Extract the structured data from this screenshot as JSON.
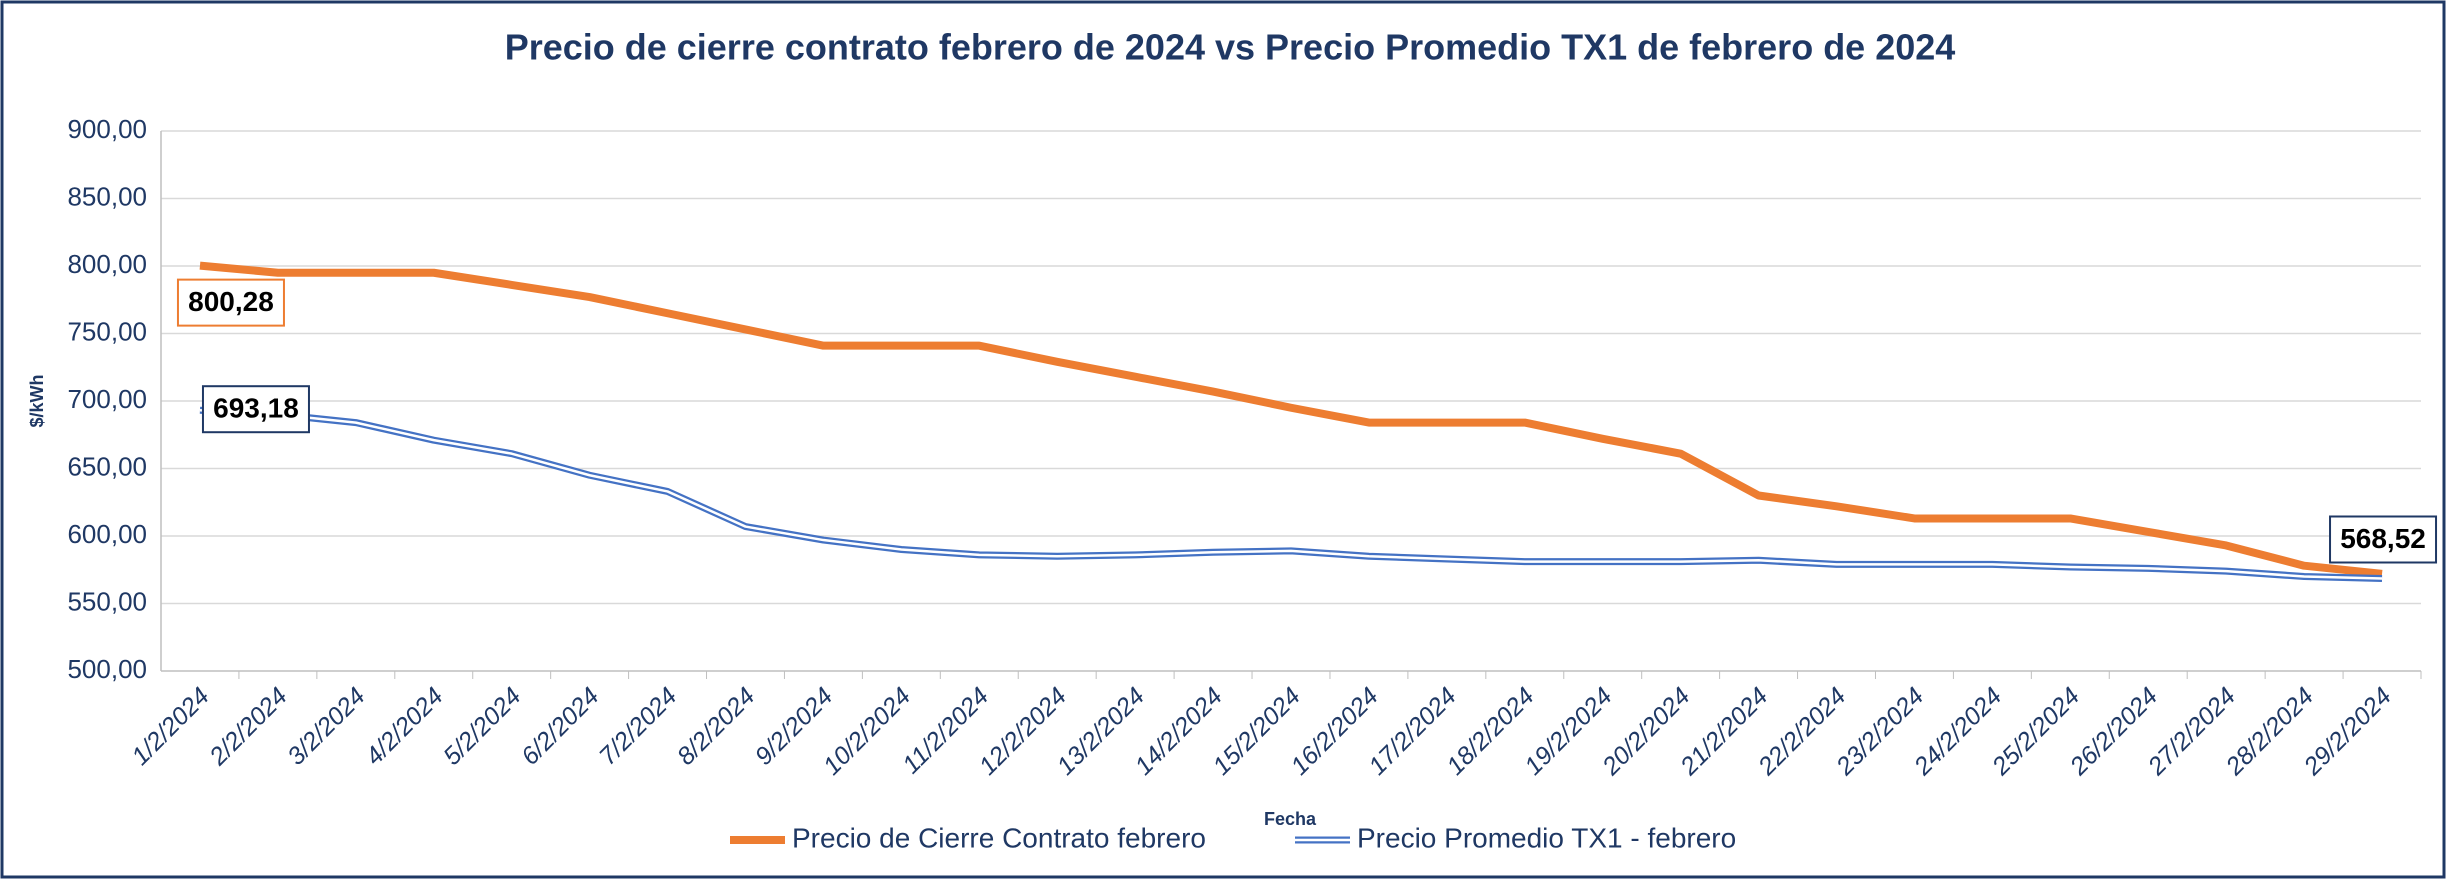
{
  "chart_data": {
    "type": "line",
    "title": "Precio de cierre contrato febrero de 2024 vs Precio Promedio TX1 de febrero de 2024",
    "x_label": "Fecha",
    "y_label": "$/kWh",
    "categories": [
      "1/2/2024",
      "2/2/2024",
      "3/2/2024",
      "4/2/2024",
      "5/2/2024",
      "6/2/2024",
      "7/2/2024",
      "8/2/2024",
      "9/2/2024",
      "10/2/2024",
      "11/2/2024",
      "12/2/2024",
      "13/2/2024",
      "14/2/2024",
      "15/2/2024",
      "16/2/2024",
      "17/2/2024",
      "18/2/2024",
      "19/2/2024",
      "20/2/2024",
      "21/2/2024",
      "22/2/2024",
      "23/2/2024",
      "24/2/2024",
      "25/2/2024",
      "26/2/2024",
      "27/2/2024",
      "28/2/2024",
      "29/2/2024"
    ],
    "series": [
      {
        "name": "Precio de Cierre Contrato febrero",
        "color": "#ed7d31",
        "values": [
          800.28,
          795,
          795,
          795,
          786,
          777,
          765,
          753,
          741,
          741,
          741,
          729,
          718,
          707,
          695,
          684,
          684,
          684,
          672,
          661,
          630,
          622,
          613,
          613,
          613,
          603,
          593,
          578,
          572
        ],
        "value_labels": [
          "800,28",
          null,
          null,
          null,
          null,
          null,
          null,
          null,
          null,
          null,
          null,
          null,
          null,
          null,
          null,
          null,
          null,
          null,
          null,
          null,
          null,
          null,
          null,
          null,
          null,
          null,
          null,
          null,
          null
        ]
      },
      {
        "name": "Precio Promedio TX1 - febrero",
        "color": "#4472c4",
        "values": [
          693.18,
          690,
          684,
          671,
          661,
          645,
          633,
          607,
          597,
          590,
          586,
          585,
          586,
          588,
          589,
          585,
          583,
          581,
          581,
          581,
          582,
          579,
          579,
          579,
          577,
          576,
          574,
          570,
          568.52
        ],
        "value_labels": [
          "693,18",
          null,
          null,
          null,
          null,
          null,
          null,
          null,
          null,
          null,
          null,
          null,
          null,
          null,
          null,
          null,
          null,
          null,
          null,
          null,
          null,
          null,
          null,
          null,
          null,
          null,
          null,
          null,
          "568,52"
        ]
      }
    ],
    "ylim": [
      500,
      900
    ],
    "yticks": [
      {
        "value": 500,
        "label": "500,00"
      },
      {
        "value": 550,
        "label": "550,00"
      },
      {
        "value": 600,
        "label": "600,00"
      },
      {
        "value": 650,
        "label": "650,00"
      },
      {
        "value": 700,
        "label": "700,00"
      },
      {
        "value": 750,
        "label": "750,00"
      },
      {
        "value": 800,
        "label": "800,00"
      },
      {
        "value": 850,
        "label": "850,00"
      },
      {
        "value": 900,
        "label": "900,00"
      }
    ],
    "grid": true,
    "legend": "bottom"
  }
}
